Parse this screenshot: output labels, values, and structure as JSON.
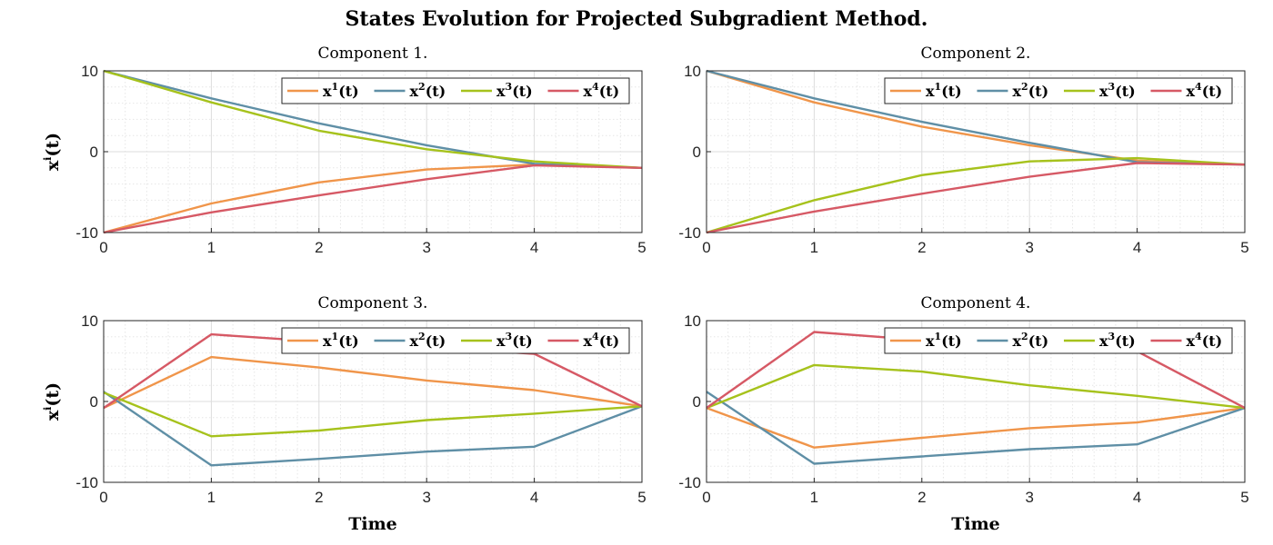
{
  "figure_title": "States Evolution for Projected Subgradient Method.",
  "series_style": {
    "colors": [
      "#f0954a",
      "#5f8fa6",
      "#a6c21c",
      "#d65965"
    ]
  },
  "chart_data": [
    {
      "type": "line",
      "title": "Component 1.",
      "xlabel": "",
      "ylabel": "x^i(t)",
      "ylabel_main": "x",
      "ylabel_sup": "i",
      "ylabel_paren": "(t)",
      "xlim": [
        0,
        5
      ],
      "ylim": [
        -10,
        10
      ],
      "xticks": [
        0,
        1,
        2,
        3,
        4,
        5
      ],
      "yticks": [
        -10,
        0,
        10
      ],
      "grid": true,
      "legend_position": "top-right",
      "x": [
        0,
        1,
        2,
        3,
        4,
        5
      ],
      "series": [
        {
          "name": "x^1(t)",
          "label_main": "x",
          "label_sup": "1",
          "label_paren": "(t)",
          "values": [
            -10,
            -6.4,
            -3.8,
            -2.2,
            -1.6,
            -2.0
          ]
        },
        {
          "name": "x^2(t)",
          "label_main": "x",
          "label_sup": "2",
          "label_paren": "(t)",
          "values": [
            10,
            6.6,
            3.5,
            0.8,
            -1.5,
            -2.0
          ]
        },
        {
          "name": "x^3(t)",
          "label_main": "x",
          "label_sup": "3",
          "label_paren": "(t)",
          "values": [
            10,
            6.1,
            2.6,
            0.3,
            -1.2,
            -2.0
          ]
        },
        {
          "name": "x^4(t)",
          "label_main": "x",
          "label_sup": "4",
          "label_paren": "(t)",
          "values": [
            -10,
            -7.5,
            -5.4,
            -3.4,
            -1.7,
            -2.0
          ]
        }
      ]
    },
    {
      "type": "line",
      "title": "Component 2.",
      "xlabel": "",
      "ylabel": "",
      "xlim": [
        0,
        5
      ],
      "ylim": [
        -10,
        10
      ],
      "xticks": [
        0,
        1,
        2,
        3,
        4,
        5
      ],
      "yticks": [
        -10,
        0,
        10
      ],
      "grid": true,
      "legend_position": "top-right",
      "x": [
        0,
        1,
        2,
        3,
        4,
        5
      ],
      "series": [
        {
          "name": "x^1(t)",
          "label_main": "x",
          "label_sup": "1",
          "label_paren": "(t)",
          "values": [
            10,
            6.1,
            3.1,
            0.8,
            -1.1,
            -1.6
          ]
        },
        {
          "name": "x^2(t)",
          "label_main": "x",
          "label_sup": "2",
          "label_paren": "(t)",
          "values": [
            10,
            6.6,
            3.7,
            1.1,
            -1.3,
            -1.6
          ]
        },
        {
          "name": "x^3(t)",
          "label_main": "x",
          "label_sup": "3",
          "label_paren": "(t)",
          "values": [
            -10,
            -6.0,
            -2.9,
            -1.2,
            -0.8,
            -1.6
          ]
        },
        {
          "name": "x^4(t)",
          "label_main": "x",
          "label_sup": "4",
          "label_paren": "(t)",
          "values": [
            -10,
            -7.4,
            -5.2,
            -3.1,
            -1.4,
            -1.6
          ]
        }
      ]
    },
    {
      "type": "line",
      "title": "Component 3.",
      "xlabel": "Time",
      "ylabel": "x^i(t)",
      "ylabel_main": "x",
      "ylabel_sup": "i",
      "ylabel_paren": "(t)",
      "xlim": [
        0,
        5
      ],
      "ylim": [
        -10,
        10
      ],
      "xticks": [
        0,
        1,
        2,
        3,
        4,
        5
      ],
      "yticks": [
        -10,
        0,
        10
      ],
      "grid": true,
      "legend_position": "top-right",
      "x": [
        0,
        1,
        2,
        3,
        4,
        5
      ],
      "series": [
        {
          "name": "x^1(t)",
          "label_main": "x",
          "label_sup": "1",
          "label_paren": "(t)",
          "values": [
            -0.8,
            5.5,
            4.2,
            2.6,
            1.4,
            -0.6
          ]
        },
        {
          "name": "x^2(t)",
          "label_main": "x",
          "label_sup": "2",
          "label_paren": "(t)",
          "values": [
            1.2,
            -7.9,
            -7.1,
            -6.2,
            -5.6,
            -0.6
          ]
        },
        {
          "name": "x^3(t)",
          "label_main": "x",
          "label_sup": "3",
          "label_paren": "(t)",
          "values": [
            1.1,
            -4.3,
            -3.6,
            -2.3,
            -1.5,
            -0.6
          ]
        },
        {
          "name": "x^4(t)",
          "label_main": "x",
          "label_sup": "4",
          "label_paren": "(t)",
          "values": [
            -0.8,
            8.3,
            7.4,
            6.7,
            5.9,
            -0.6
          ]
        }
      ]
    },
    {
      "type": "line",
      "title": "Component 4.",
      "xlabel": "Time",
      "ylabel": "",
      "xlim": [
        0,
        5
      ],
      "ylim": [
        -10,
        10
      ],
      "xticks": [
        0,
        1,
        2,
        3,
        4,
        5
      ],
      "yticks": [
        -10,
        0,
        10
      ],
      "grid": true,
      "legend_position": "top-right",
      "x": [
        0,
        1,
        2,
        3,
        4,
        5
      ],
      "series": [
        {
          "name": "x^1(t)",
          "label_main": "x",
          "label_sup": "1",
          "label_paren": "(t)",
          "values": [
            -0.8,
            -5.7,
            -4.5,
            -3.3,
            -2.6,
            -0.8
          ]
        },
        {
          "name": "x^2(t)",
          "label_main": "x",
          "label_sup": "2",
          "label_paren": "(t)",
          "values": [
            1.2,
            -7.7,
            -6.8,
            -5.9,
            -5.3,
            -0.8
          ]
        },
        {
          "name": "x^3(t)",
          "label_main": "x",
          "label_sup": "3",
          "label_paren": "(t)",
          "values": [
            -0.8,
            4.5,
            3.7,
            2.0,
            0.7,
            -0.8
          ]
        },
        {
          "name": "x^4(t)",
          "label_main": "x",
          "label_sup": "4",
          "label_paren": "(t)",
          "values": [
            -0.8,
            8.6,
            7.6,
            6.9,
            6.2,
            -0.8
          ]
        }
      ]
    }
  ]
}
